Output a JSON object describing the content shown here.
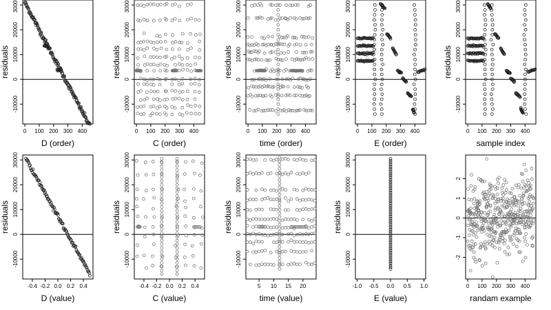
{
  "colors": {
    "point_dark": "#222222",
    "point_gray": "#777777",
    "axis": "#000000"
  },
  "chart_data": [
    {
      "type": "scatter",
      "id": "p1",
      "xlabel": "D (order)",
      "ylabel": "residuals",
      "xlim": [
        -15,
        475
      ],
      "ylim": [
        -18000,
        32000
      ],
      "xticks": [
        0,
        100,
        200,
        300,
        400
      ],
      "yticks": [
        -10000,
        0,
        10000,
        20000,
        30000
      ],
      "zero_line": true,
      "point_color": "dark",
      "gen": {
        "kind": "order_line",
        "n": 160,
        "slope": -110,
        "intercept": 31000,
        "noise": 500,
        "plateaus": [
          [
            150,
            13500
          ],
          [
            240,
            3600
          ]
        ]
      }
    },
    {
      "type": "scatter",
      "id": "p2",
      "xlabel": "C (order)",
      "ylabel": "residuals",
      "xlim": [
        -15,
        475
      ],
      "ylim": [
        -18000,
        32000
      ],
      "xticks": [
        0,
        100,
        200,
        300,
        400
      ],
      "yticks": [
        -10000,
        0,
        10000,
        20000,
        30000
      ],
      "zero_line": true,
      "point_color": "gray",
      "gen": {
        "kind": "grid_columns",
        "columns": [
          10,
          30,
          55,
          75,
          100,
          120,
          145,
          165,
          200,
          210,
          250,
          270,
          300,
          320,
          355,
          380,
          410,
          440
        ],
        "levels": [
          30000,
          24000,
          18000,
          15000,
          12000,
          9000,
          6000,
          3500,
          0,
          -2000,
          -5000,
          -8000,
          -11000,
          -14000
        ],
        "band_y": 3500
      }
    },
    {
      "type": "scatter",
      "id": "p3",
      "xlabel": "time (order)",
      "ylabel": "residuals",
      "xlim": [
        -15,
        475
      ],
      "ylim": [
        -18000,
        32000
      ],
      "xticks": [
        0,
        100,
        200,
        300,
        400
      ],
      "yticks": [
        -10000,
        0,
        10000,
        20000,
        30000
      ],
      "zero_line": true,
      "point_color": "gray",
      "gen": {
        "kind": "grid_rows",
        "levels": [
          30000,
          24500,
          17000,
          14000,
          11000,
          8000,
          3500,
          0,
          -3000,
          -6500,
          -12500
        ],
        "bands": [
          [
            60,
            120,
            3500
          ],
          [
            300,
            380,
            3500
          ]
        ]
      }
    },
    {
      "type": "scatter",
      "id": "p4",
      "xlabel": "E (order)",
      "ylabel": "residuals",
      "xlim": [
        -15,
        475
      ],
      "ylim": [
        -18000,
        32000
      ],
      "xticks": [
        0,
        100,
        200,
        300,
        400
      ],
      "yticks": [
        -10000,
        0,
        10000,
        20000,
        30000
      ],
      "zero_line": true,
      "point_color": "dark",
      "gen": {
        "kind": "segments",
        "left_block": [
          0,
          110,
          [
            16500,
            13500,
            10500,
            7500
          ]
        ],
        "verticals": [
          120,
          170,
          400
        ],
        "segments": [
          [
            160,
            190,
            30500,
            28500
          ],
          [
            205,
            230,
            18500,
            16500
          ],
          [
            245,
            270,
            12500,
            10000
          ],
          [
            280,
            305,
            3500,
            2500
          ],
          [
            315,
            340,
            500,
            -1000
          ],
          [
            350,
            375,
            -5500,
            -7000
          ],
          [
            385,
            395,
            -12000,
            -13500
          ],
          [
            420,
            470,
            3000,
            4000
          ]
        ]
      }
    },
    {
      "type": "scatter",
      "id": "p5",
      "xlabel": "sample index",
      "ylabel": "residuals",
      "xlim": [
        -15,
        475
      ],
      "ylim": [
        -18000,
        32000
      ],
      "xticks": [
        0,
        100,
        200,
        300,
        400
      ],
      "yticks": [
        -10000,
        0,
        10000,
        20000,
        30000
      ],
      "zero_line": true,
      "point_color": "dark",
      "gen": {
        "kind": "segments",
        "left_block": [
          0,
          110,
          [
            16500,
            13500,
            10500,
            7500
          ]
        ],
        "verticals": [
          120,
          170,
          400
        ],
        "segments": [
          [
            140,
            160,
            30500,
            28500
          ],
          [
            190,
            215,
            18500,
            16500
          ],
          [
            230,
            255,
            12500,
            10000
          ],
          [
            270,
            295,
            3500,
            2500
          ],
          [
            300,
            325,
            500,
            -1000
          ],
          [
            335,
            365,
            -5500,
            -7000
          ],
          [
            370,
            385,
            -12000,
            -13500
          ],
          [
            420,
            470,
            3000,
            4000
          ]
        ]
      }
    },
    {
      "type": "scatter",
      "id": "p6",
      "xlabel": "D (value)",
      "ylabel": "residuals",
      "xlim": [
        -0.55,
        0.55
      ],
      "ylim": [
        -18000,
        32000
      ],
      "xticks": [
        -0.4,
        -0.2,
        0.0,
        0.2,
        0.4
      ],
      "xticklabels": [
        "-0.4",
        "-0.2",
        "0.0",
        "0.2",
        "0.4"
      ],
      "yticks": [
        -10000,
        0,
        10000,
        20000,
        30000
      ],
      "zero_line": true,
      "point_color": "dark",
      "gen": {
        "kind": "value_line",
        "n": 110,
        "x0": -0.5,
        "x1": 0.5,
        "y0": 30500,
        "y1": -16000,
        "noise": 400
      }
    },
    {
      "type": "scatter",
      "id": "p7",
      "xlabel": "C (value)",
      "ylabel": "residuals",
      "xlim": [
        -0.55,
        0.55
      ],
      "ylim": [
        -18000,
        32000
      ],
      "xticks": [
        -0.4,
        -0.2,
        0.0,
        0.2,
        0.4
      ],
      "xticklabels": [
        "-0.4",
        "-0.2",
        "0.0",
        "0.2",
        "0.4"
      ],
      "yticks": [
        -10000,
        0,
        10000,
        20000,
        30000
      ],
      "zero_line": true,
      "point_color": "gray",
      "gen": {
        "kind": "value_columns",
        "columns": [
          -0.5,
          -0.38,
          -0.25,
          -0.12,
          0.12,
          0.25,
          0.38,
          0.5
        ],
        "vlines": [
          -0.12,
          0.12
        ],
        "levels": [
          29000,
          24000,
          18000,
          14500,
          11000,
          7000,
          3000,
          -500,
          -4000,
          -9000,
          -13000
        ],
        "band_y": 3000
      }
    },
    {
      "type": "scatter",
      "id": "p8",
      "xlabel": "time (value)",
      "ylabel": "residuals",
      "xlim": [
        0.5,
        24.5
      ],
      "ylim": [
        -18000,
        32000
      ],
      "xticks": [
        5,
        10,
        15,
        20
      ],
      "yticks": [
        -10000,
        0,
        10000,
        20000,
        30000
      ],
      "zero_line": true,
      "point_color": "gray",
      "gen": {
        "kind": "value_rows",
        "xs": [
          1,
          2,
          3,
          4,
          5,
          6,
          7,
          8,
          9,
          10,
          11,
          12,
          13,
          14,
          15,
          16,
          17,
          18,
          19,
          20,
          21,
          22,
          23,
          24
        ],
        "levels": [
          30000,
          24500,
          18000,
          14000,
          10000,
          6000,
          3000,
          0,
          -3000,
          -7000,
          -12000
        ],
        "bands": [
          [
            5,
            7,
            3000
          ],
          [
            16,
            21,
            3000
          ]
        ],
        "vline": 12
      }
    },
    {
      "type": "scatter",
      "id": "p9",
      "xlabel": "E (value)",
      "ylabel": "residuals",
      "xlim": [
        -1.05,
        1.05
      ],
      "ylim": [
        -18000,
        32000
      ],
      "xticks": [
        -1.0,
        -0.5,
        0.0,
        0.5,
        1.0
      ],
      "xticklabels": [
        "-1.0",
        "-0.5",
        "0.0",
        "0.5",
        "1.0"
      ],
      "yticks": [
        -10000,
        0,
        10000,
        20000,
        30000
      ],
      "zero_line": true,
      "point_color": "dark",
      "gen": {
        "kind": "single_column",
        "x": 0,
        "y0": -14000,
        "y1": 30500,
        "n": 60
      }
    },
    {
      "type": "scatter",
      "id": "p10",
      "xlabel": "randam example",
      "ylabel": "",
      "xlim": [
        -15,
        475
      ],
      "ylim": [
        -3.1,
        3.2
      ],
      "xticks": [
        0,
        100,
        200,
        300,
        400
      ],
      "yticks": [
        -2,
        -1,
        0,
        1,
        2
      ],
      "zero_line": true,
      "point_color": "gray",
      "gen": {
        "kind": "random_normal",
        "n": 460
      }
    }
  ]
}
